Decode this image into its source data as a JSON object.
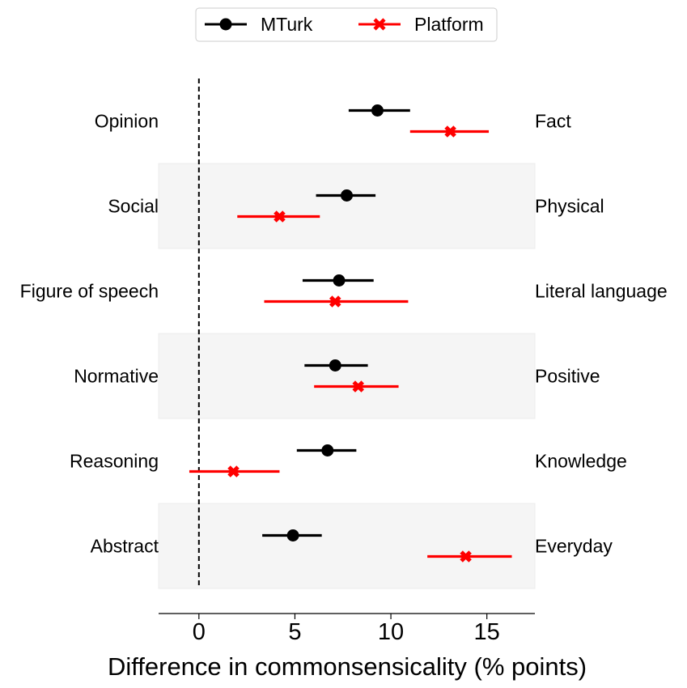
{
  "chart_data": {
    "type": "errorbar",
    "xlabel": "Difference in commonsensicality (% points)",
    "xlim": [
      -2.1,
      17.5
    ],
    "xticks": [
      0,
      5,
      10,
      15
    ],
    "reference_line_x": 0,
    "legend": {
      "placement": "top-center",
      "entries": [
        "MTurk",
        "Platform"
      ]
    },
    "rows": [
      {
        "left": "Opinion",
        "right": "Fact",
        "shaded": false
      },
      {
        "left": "Social",
        "right": "Physical",
        "shaded": true
      },
      {
        "left": "Figure of speech",
        "right": "Literal language",
        "shaded": false
      },
      {
        "left": "Normative",
        "right": "Positive",
        "shaded": true
      },
      {
        "left": "Reasoning",
        "right": "Knowledge",
        "shaded": false
      },
      {
        "left": "Abstract",
        "right": "Everyday",
        "shaded": true
      }
    ],
    "series": [
      {
        "name": "MTurk",
        "color": "#000000",
        "marker": "circle",
        "points": [
          {
            "value": 9.3,
            "low": 7.8,
            "high": 11.0
          },
          {
            "value": 7.7,
            "low": 6.1,
            "high": 9.2
          },
          {
            "value": 7.3,
            "low": 5.4,
            "high": 9.1
          },
          {
            "value": 7.1,
            "low": 5.5,
            "high": 8.8
          },
          {
            "value": 6.7,
            "low": 5.1,
            "high": 8.2
          },
          {
            "value": 4.9,
            "low": 3.3,
            "high": 6.4
          }
        ]
      },
      {
        "name": "Platform",
        "color": "#ff0000",
        "marker": "x",
        "points": [
          {
            "value": 13.1,
            "low": 11.0,
            "high": 15.1
          },
          {
            "value": 4.2,
            "low": 2.0,
            "high": 6.3
          },
          {
            "value": 7.1,
            "low": 3.4,
            "high": 10.9
          },
          {
            "value": 8.3,
            "low": 6.0,
            "high": 10.4
          },
          {
            "value": 1.8,
            "low": -0.5,
            "high": 4.2
          },
          {
            "value": 13.9,
            "low": 11.9,
            "high": 16.3
          }
        ]
      }
    ]
  }
}
